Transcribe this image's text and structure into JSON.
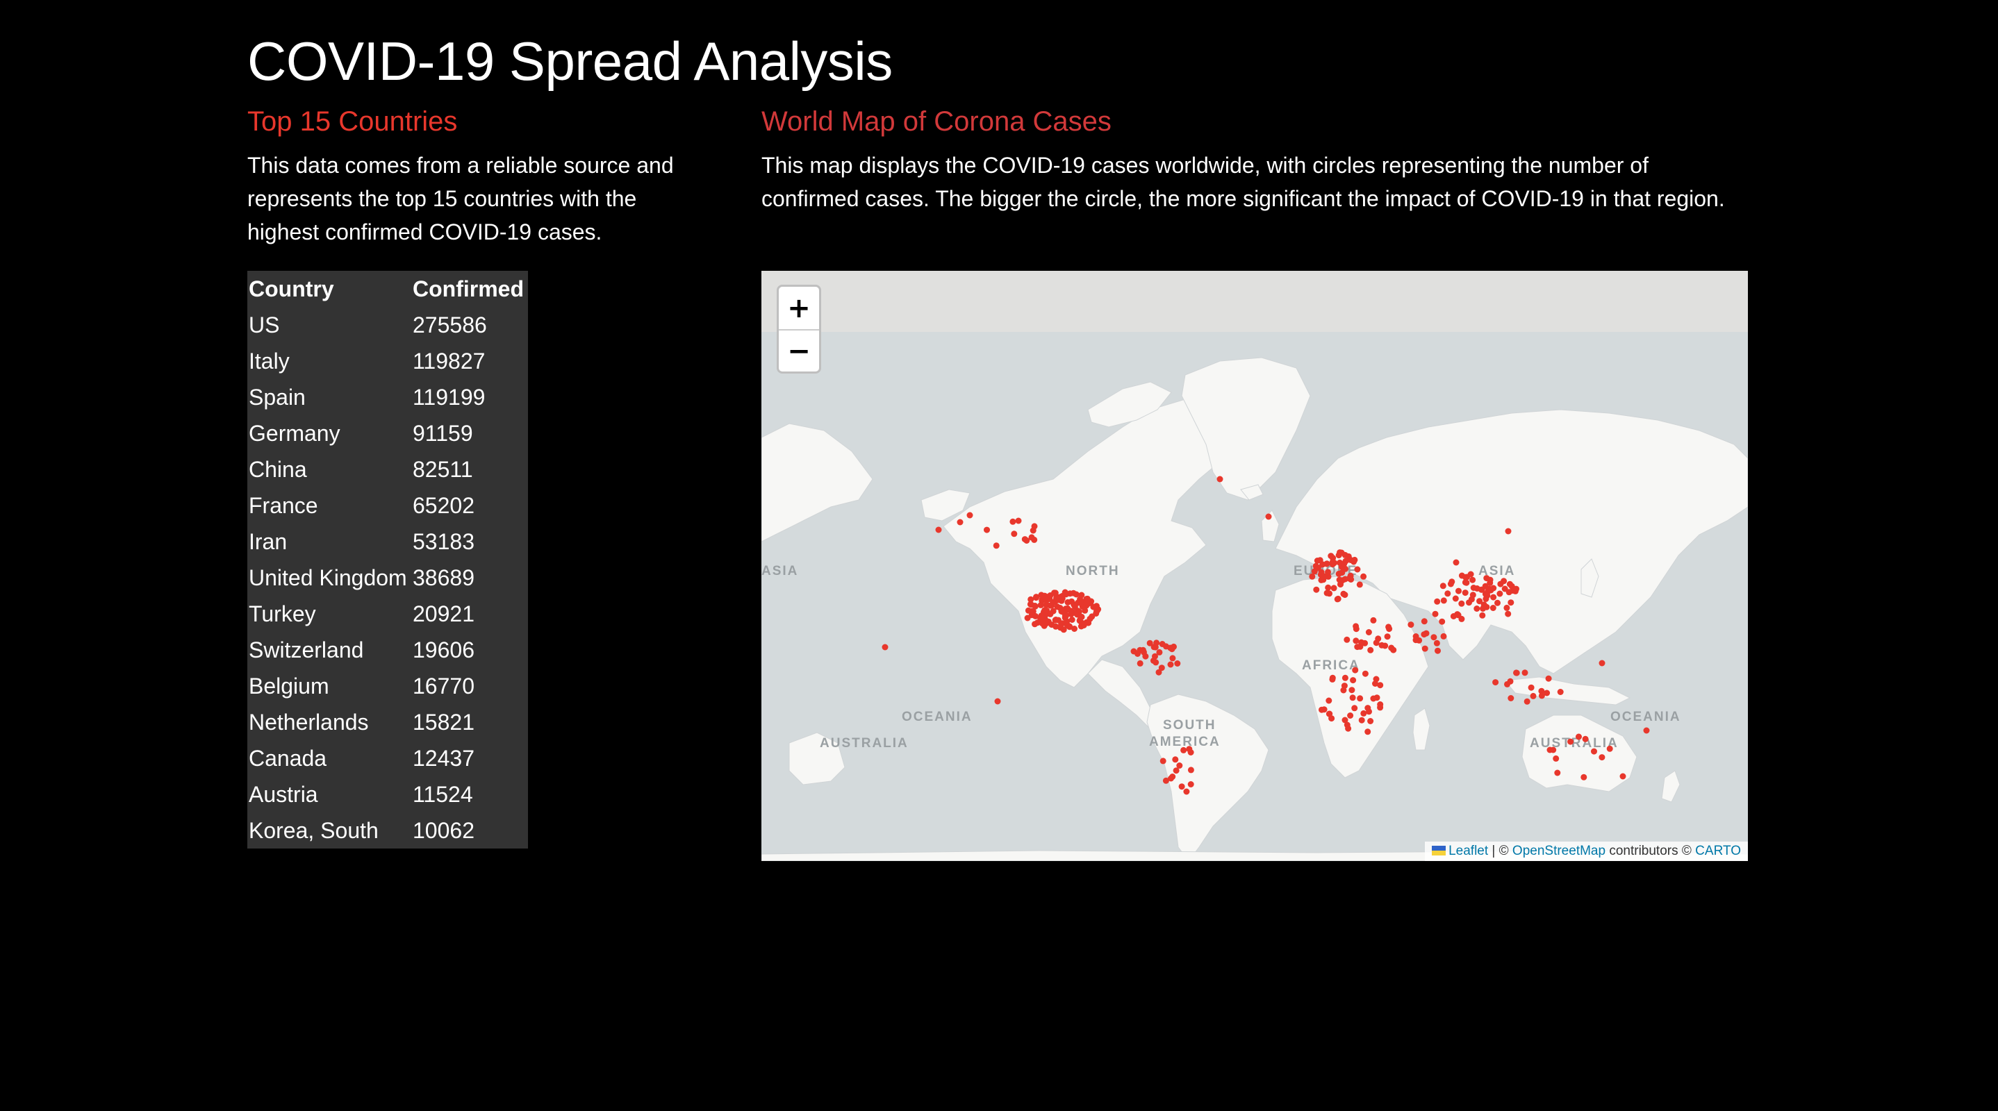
{
  "page": {
    "title": "COVID-19 Spread Analysis"
  },
  "left_panel": {
    "heading": "Top 15 Countries",
    "description": "This data comes from a reliable source and represents the top 15 countries with the highest confirmed COVID-19 cases.",
    "table": {
      "headers": [
        "Country",
        "Confirmed"
      ],
      "rows": [
        [
          "US",
          "275586"
        ],
        [
          "Italy",
          "119827"
        ],
        [
          "Spain",
          "119199"
        ],
        [
          "Germany",
          "91159"
        ],
        [
          "China",
          "82511"
        ],
        [
          "France",
          "65202"
        ],
        [
          "Iran",
          "53183"
        ],
        [
          "United Kingdom",
          "38689"
        ],
        [
          "Turkey",
          "20921"
        ],
        [
          "Switzerland",
          "19606"
        ],
        [
          "Belgium",
          "16770"
        ],
        [
          "Netherlands",
          "15821"
        ],
        [
          "Canada",
          "12437"
        ],
        [
          "Austria",
          "11524"
        ],
        [
          "Korea, South",
          "10062"
        ]
      ]
    }
  },
  "right_panel": {
    "heading": "World Map of Corona Cases",
    "description": "This map displays the COVID-19 cases worldwide, with circles representing the number of confirmed cases. The bigger the circle, the more significant the impact of COVID-19 in that region.",
    "map": {
      "zoom_in": "+",
      "zoom_out": "−",
      "labels": [
        "ASIA",
        "NORTH",
        "EUROPE",
        "ASIA",
        "AFRICA",
        "OCEANIA",
        "AUSTRALIA",
        "SOUTH",
        "AMERICA",
        "AUSTRALIA",
        "OCEANIA"
      ],
      "attribution": {
        "leaflet": "Leaflet",
        "sep1": " | © ",
        "osm": "OpenStreetMap",
        "sep2": " contributors © ",
        "carto": "CARTO"
      },
      "marker_color": "#e8372c",
      "land_color": "#f7f7f5",
      "water_color": "#d4dadc"
    }
  }
}
